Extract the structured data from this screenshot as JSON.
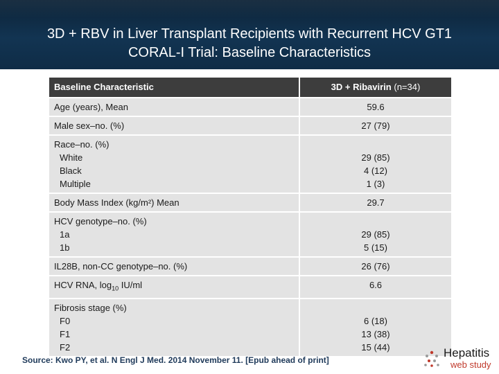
{
  "header": {
    "title_line1": "3D + RBV in Liver Transplant Recipients with Recurrent HCV GT1",
    "title_line2": "CORAL-I Trial: Baseline Characteristics"
  },
  "table": {
    "col1_header": "Baseline Characteristic",
    "col2_header_bold": "3D + Ribavirin",
    "col2_header_n": "(n=34)",
    "rows": [
      {
        "label": "Age (years), Mean",
        "value": "59.6"
      },
      {
        "label": "Male sex–no. (%)",
        "value": "27 (79)"
      },
      {
        "label": "Race–no. (%)",
        "subs": [
          "White",
          "Black",
          "Multiple"
        ],
        "values": [
          "29 (85)",
          "4 (12)",
          "1 (3)"
        ]
      },
      {
        "label": "Body Mass Index (kg/m²) Mean",
        "value": "29.7"
      },
      {
        "label": "HCV genotype–no. (%)",
        "subs": [
          "1a",
          "1b"
        ],
        "values": [
          "29 (85)",
          "5 (15)"
        ]
      },
      {
        "label": "IL28B, non-CC genotype–no. (%)",
        "value": "26 (76)"
      },
      {
        "label_prefix": "HCV RNA, log",
        "label_sub": "10",
        "label_suffix": " IU/ml",
        "value": "6.6"
      },
      {
        "label": "Fibrosis stage (%)",
        "subs": [
          "F0",
          "F1",
          "F2"
        ],
        "values": [
          "6 (18)",
          "13 (38)",
          "15 (44)"
        ]
      }
    ]
  },
  "footer": {
    "source": "Source: Kwo PY, et al. N Engl J Med. 2014 November 11. [Epub ahead of print]"
  },
  "logo": {
    "line1": "Hepatitis",
    "line2": "web study"
  }
}
